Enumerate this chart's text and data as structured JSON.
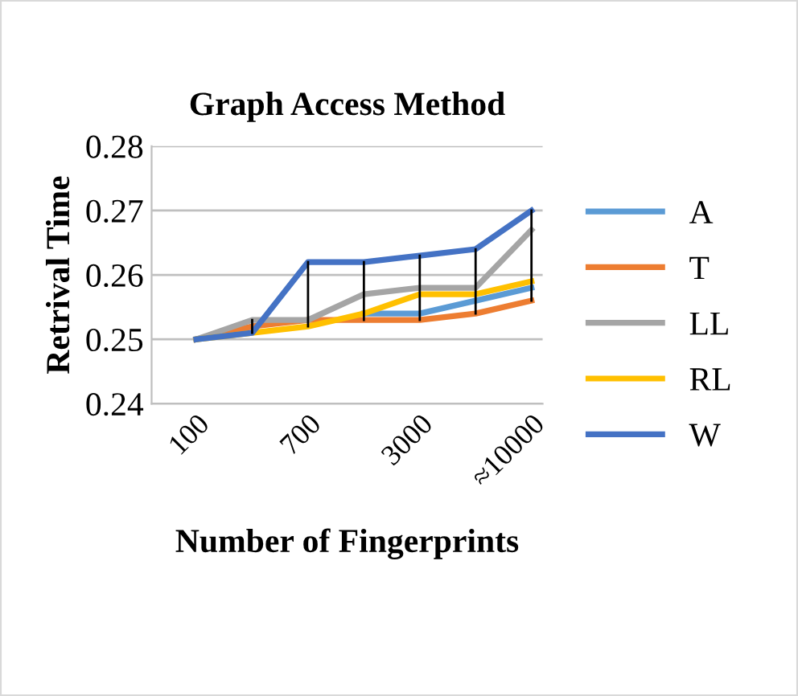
{
  "chart_data": {
    "type": "line",
    "title": "Graph Access Method",
    "xlabel": "Number of Fingerprints",
    "ylabel": "Retrival Time",
    "categories": [
      "100",
      null,
      "700",
      null,
      "3000",
      null,
      "≈10000"
    ],
    "series": [
      {
        "name": "A",
        "color": "#5b9bd5",
        "values": [
          0.25,
          0.252,
          null,
          0.254,
          0.254,
          0.256,
          0.258
        ]
      },
      {
        "name": "T",
        "color": "#ed7d31",
        "values": [
          0.25,
          0.252,
          0.253,
          0.253,
          0.253,
          0.254,
          0.256
        ]
      },
      {
        "name": "LL",
        "color": "#a5a5a5",
        "values": [
          0.25,
          0.253,
          0.253,
          0.257,
          0.258,
          0.258,
          0.267
        ]
      },
      {
        "name": "RL",
        "color": "#ffc000",
        "values": [
          0.25,
          0.251,
          0.252,
          0.254,
          0.257,
          0.257,
          0.259
        ]
      },
      {
        "name": "W",
        "color": "#4472c4",
        "values": [
          0.25,
          0.251,
          0.262,
          0.262,
          0.263,
          0.264,
          0.27
        ],
        "errors": [
          null,
          [
            0.251,
            0.253
          ],
          [
            0.252,
            0.262
          ],
          [
            0.253,
            0.262
          ],
          [
            0.253,
            0.263
          ],
          [
            0.254,
            0.264
          ],
          [
            0.256,
            0.27
          ]
        ]
      }
    ],
    "ylim": [
      0.24,
      0.28
    ],
    "yticks": [
      0.24,
      0.25,
      0.26,
      0.27,
      0.28
    ],
    "grid": "y",
    "legend": "right",
    "marker": "none",
    "line_style": "solid"
  }
}
